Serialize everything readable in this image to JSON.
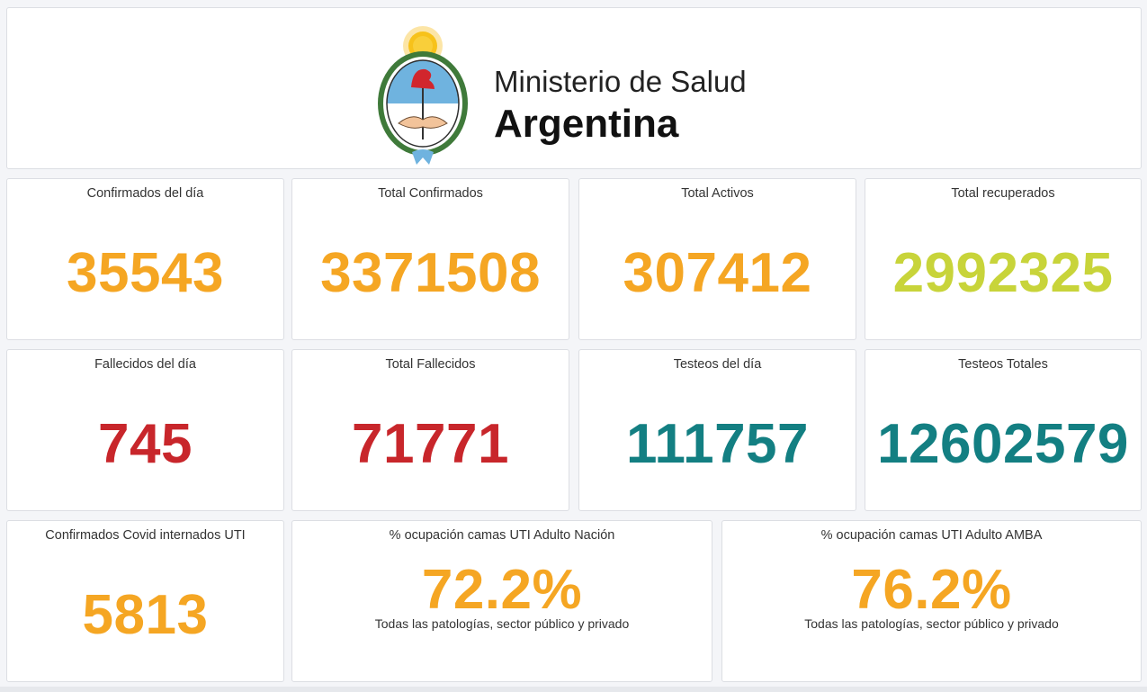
{
  "header": {
    "org_line1": "Ministerio de Salud",
    "org_line2": "Argentina",
    "emblem_icon": "argentina-coat-of-arms"
  },
  "colors": {
    "orange": "#f5a623",
    "lime": "#c8d43a",
    "red": "#c8262b",
    "teal": "#137f82"
  },
  "stats": [
    {
      "label": "Confirmados del día",
      "value": "35543"
    },
    {
      "label": "Total Confirmados",
      "value": "3371508"
    },
    {
      "label": "Total Activos",
      "value": "307412"
    },
    {
      "label": "Total recuperados",
      "value": "2992325"
    },
    {
      "label": "Fallecidos del día",
      "value": "745"
    },
    {
      "label": "Total Fallecidos",
      "value": "71771"
    },
    {
      "label": "Testeos del día",
      "value": "111757"
    },
    {
      "label": "Testeos Totales",
      "value": "12602579"
    },
    {
      "label": "Confirmados Covid internados UTI",
      "value": "5813"
    }
  ],
  "occupancy": [
    {
      "label": "% ocupación camas UTI Adulto Nación",
      "value": "72.2%",
      "note": "Todas las patologías, sector público y privado"
    },
    {
      "label": "% ocupación camas UTI Adulto AMBA",
      "value": "76.2%",
      "note": "Todas las patologías, sector público y privado"
    }
  ]
}
